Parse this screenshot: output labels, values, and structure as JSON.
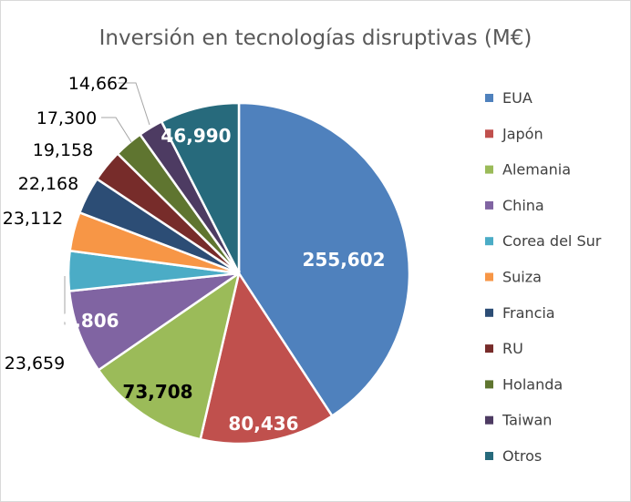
{
  "chart_data": {
    "type": "pie",
    "title": "Inversión en tecnologías disruptivas (M€)",
    "categories": [
      "EUA",
      "Japón",
      "Alemania",
      "China",
      "Corea del Sur",
      "Suiza",
      "Francia",
      "RU",
      "Holanda",
      "Taiwan",
      "Otros"
    ],
    "values": [
      255602,
      80436,
      73708,
      49806,
      23659,
      23112,
      22168,
      19158,
      17300,
      14662,
      46990
    ],
    "data_labels": [
      "255,602",
      "80,436",
      "73,708",
      "49,806",
      "23,659",
      "23,112",
      "22,168",
      "19,158",
      "17,300",
      "14,662",
      "46,990"
    ],
    "colors": [
      "#4F81BD",
      "#C0504D",
      "#9BBB59",
      "#8064A2",
      "#4BACC6",
      "#F79646",
      "#2C4D75",
      "#772C2A",
      "#5F7530",
      "#4D3B62",
      "#276A7C"
    ],
    "start_angle": "top, clockwise",
    "legend_placement": "right"
  }
}
